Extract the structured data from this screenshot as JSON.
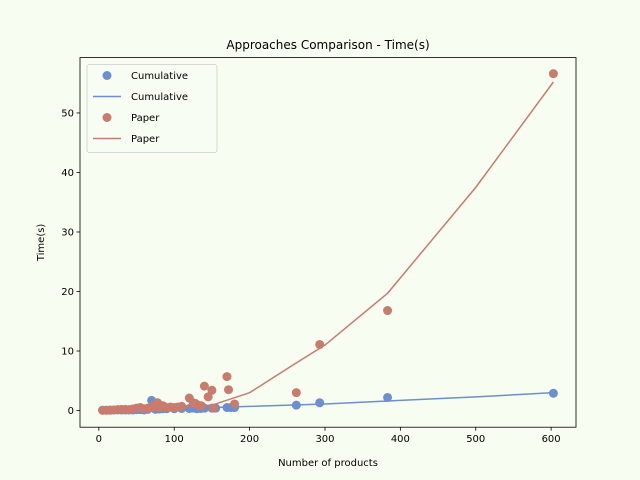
{
  "chart_data": {
    "type": "scatter",
    "title": "Approaches Comparison - Time(s)",
    "xlabel": "Number of products",
    "ylabel": "Time(s)",
    "xlim": [
      -25,
      633
    ],
    "ylim": [
      -2.8,
      59.3
    ],
    "xticks": [
      0,
      100,
      200,
      300,
      400,
      500,
      600
    ],
    "yticks": [
      0,
      10,
      20,
      30,
      40,
      50
    ],
    "grid": false,
    "legend_position": "top-left",
    "legend": [
      "Cumulative",
      "Cumulative",
      "Paper",
      "Paper"
    ],
    "series": [
      {
        "name": "Cumulative",
        "kind": "points",
        "color": "#6b8fcf",
        "points": [
          [
            5,
            0.05
          ],
          [
            10,
            0.05
          ],
          [
            15,
            0.05
          ],
          [
            20,
            0.1
          ],
          [
            25,
            0.1
          ],
          [
            30,
            0.1
          ],
          [
            35,
            0.1
          ],
          [
            40,
            0.1
          ],
          [
            45,
            0.1
          ],
          [
            50,
            0.15
          ],
          [
            55,
            0.15
          ],
          [
            60,
            0.1
          ],
          [
            65,
            0.2
          ],
          [
            70,
            1.7
          ],
          [
            75,
            0.2
          ],
          [
            80,
            0.25
          ],
          [
            85,
            0.3
          ],
          [
            90,
            0.3
          ],
          [
            100,
            0.3
          ],
          [
            110,
            0.35
          ],
          [
            120,
            0.35
          ],
          [
            125,
            0.4
          ],
          [
            130,
            0.3
          ],
          [
            135,
            0.35
          ],
          [
            140,
            0.4
          ],
          [
            150,
            0.4
          ],
          [
            155,
            0.4
          ],
          [
            170,
            0.5
          ],
          [
            175,
            0.5
          ],
          [
            180,
            0.5
          ],
          [
            262,
            0.9
          ],
          [
            293,
            1.3
          ],
          [
            383,
            2.2
          ],
          [
            603,
            2.9
          ]
        ]
      },
      {
        "name": "Cumulative",
        "kind": "line",
        "color": "#6b8fcf",
        "points": [
          [
            0,
            0
          ],
          [
            100,
            0.3
          ],
          [
            200,
            0.7
          ],
          [
            300,
            1.1
          ],
          [
            400,
            1.7
          ],
          [
            500,
            2.3
          ],
          [
            603,
            3.0
          ]
        ]
      },
      {
        "name": "Paper",
        "kind": "points",
        "color": "#c97b6e",
        "points": [
          [
            5,
            0.05
          ],
          [
            10,
            0.05
          ],
          [
            15,
            0.1
          ],
          [
            20,
            0.1
          ],
          [
            25,
            0.15
          ],
          [
            30,
            0.2
          ],
          [
            35,
            0.2
          ],
          [
            40,
            0.15
          ],
          [
            45,
            0.25
          ],
          [
            50,
            0.4
          ],
          [
            55,
            0.5
          ],
          [
            60,
            0.3
          ],
          [
            65,
            0.4
          ],
          [
            70,
            0.5
          ],
          [
            72,
            0.8
          ],
          [
            75,
            0.6
          ],
          [
            78,
            1.3
          ],
          [
            80,
            0.5
          ],
          [
            85,
            0.8
          ],
          [
            88,
            0.6
          ],
          [
            95,
            0.6
          ],
          [
            100,
            0.5
          ],
          [
            105,
            0.6
          ],
          [
            110,
            0.7
          ],
          [
            120,
            2.1
          ],
          [
            125,
            1.3
          ],
          [
            128,
            1.2
          ],
          [
            132,
            0.9
          ],
          [
            136,
            0.8
          ],
          [
            140,
            4.1
          ],
          [
            145,
            2.3
          ],
          [
            150,
            3.4
          ],
          [
            152,
            0.4
          ],
          [
            170,
            5.7
          ],
          [
            172,
            3.5
          ],
          [
            180,
            1.1
          ],
          [
            262,
            3.0
          ],
          [
            293,
            11.1
          ],
          [
            383,
            16.8
          ],
          [
            603,
            56.6
          ]
        ]
      },
      {
        "name": "Paper",
        "kind": "line",
        "color": "#c97b6e",
        "points": [
          [
            0,
            0
          ],
          [
            100,
            0.5
          ],
          [
            150,
            0.9
          ],
          [
            200,
            3.0
          ],
          [
            262,
            8.0
          ],
          [
            300,
            11.0
          ],
          [
            383,
            19.7
          ],
          [
            500,
            37.5
          ],
          [
            603,
            55.2
          ]
        ]
      }
    ]
  }
}
